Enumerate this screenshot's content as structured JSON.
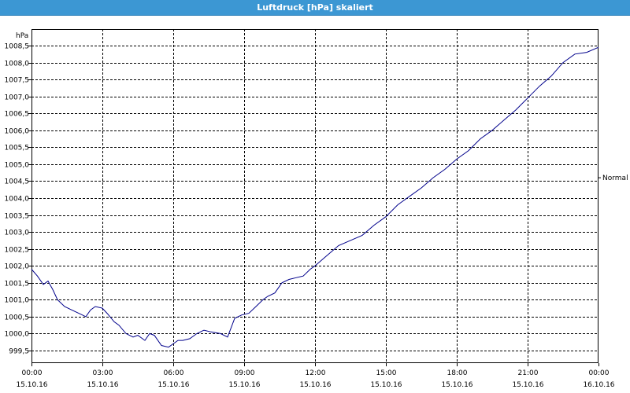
{
  "window": {
    "title": "Luftdruck [hPa] skaliert"
  },
  "colors": {
    "titlebar": "#3c97d3",
    "series": "#00008b",
    "grid": "#000000"
  },
  "chart_data": {
    "type": "line",
    "title": "Luftdruck [hPa] skaliert",
    "ylabel": "hPa",
    "xlabel": "",
    "ylim": [
      999.3,
      1008.8
    ],
    "yticks": [
      "999,5",
      "1000,0",
      "1000,5",
      "1001,0",
      "1001,5",
      "1002,0",
      "1002,5",
      "1003,0",
      "1003,5",
      "1004,0",
      "1004,5",
      "1005,0",
      "1005,5",
      "1006,0",
      "1006,5",
      "1007,0",
      "1007,5",
      "1008,0",
      "1008,5"
    ],
    "xlim_hours": [
      0,
      24
    ],
    "xticks": [
      {
        "time": "00:00",
        "date": "15.10.16"
      },
      {
        "time": "03:00",
        "date": "15.10.16"
      },
      {
        "time": "06:00",
        "date": "15.10.16"
      },
      {
        "time": "09:00",
        "date": "15.10.16"
      },
      {
        "time": "12:00",
        "date": "15.10.16"
      },
      {
        "time": "15:00",
        "date": "15.10.16"
      },
      {
        "time": "18:00",
        "date": "15.10.16"
      },
      {
        "time": "21:00",
        "date": "15.10.16"
      },
      {
        "time": "00:00",
        "date": "16.10.16"
      }
    ],
    "grid": true,
    "annotations": [
      {
        "text": "Normal",
        "y": 1004.6,
        "side": "right"
      }
    ],
    "series": [
      {
        "color": "#00008b",
        "x": [
          0,
          0.25,
          0.5,
          0.7,
          0.9,
          1.1,
          1.4,
          1.7,
          2.0,
          2.3,
          2.5,
          2.7,
          3.0,
          3.2,
          3.5,
          3.7,
          4.0,
          4.3,
          4.5,
          4.8,
          5.0,
          5.2,
          5.5,
          5.8,
          6.0,
          6.2,
          6.4,
          6.7,
          7.0,
          7.3,
          7.6,
          8.0,
          8.3,
          8.6,
          8.9,
          9.2,
          9.5,
          9.8,
          10.0,
          10.3,
          10.6,
          10.9,
          11.2,
          11.5,
          11.8,
          12.0,
          12.5,
          13.0,
          13.5,
          14.0,
          14.5,
          15.0,
          15.5,
          16.0,
          16.5,
          17.0,
          17.5,
          18.0,
          18.5,
          19.0,
          19.5,
          20.0,
          20.5,
          21.0,
          21.5,
          22.0,
          22.5,
          23.0,
          23.5,
          24.0
        ],
        "values": [
          1001.9,
          1001.7,
          1001.45,
          1001.55,
          1001.3,
          1001.0,
          1000.8,
          1000.7,
          1000.6,
          1000.5,
          1000.7,
          1000.8,
          1000.75,
          1000.6,
          1000.35,
          1000.25,
          1000.0,
          999.9,
          999.95,
          999.8,
          1000.0,
          999.95,
          999.65,
          999.6,
          999.7,
          999.8,
          999.8,
          999.85,
          1000.0,
          1000.1,
          1000.05,
          1000.0,
          999.9,
          1000.45,
          1000.55,
          1000.6,
          1000.8,
          1001.0,
          1001.1,
          1001.2,
          1001.5,
          1001.6,
          1001.65,
          1001.7,
          1001.9,
          1002.0,
          1002.3,
          1002.6,
          1002.75,
          1002.9,
          1003.2,
          1003.45,
          1003.8,
          1004.05,
          1004.3,
          1004.6,
          1004.85,
          1005.15,
          1005.4,
          1005.75,
          1006.0,
          1006.3,
          1006.6,
          1006.95,
          1007.3,
          1007.6,
          1008.0,
          1008.25,
          1008.3,
          1008.45
        ]
      }
    ]
  }
}
